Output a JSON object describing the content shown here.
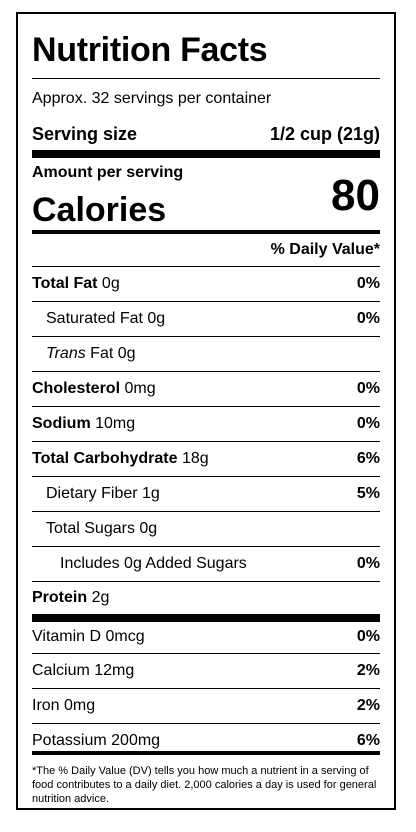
{
  "title": "Nutrition Facts",
  "servings_per_container": "Approx. 32 servings per container",
  "serving_size_label": "Serving size",
  "serving_size_value": "1/2 cup (21g)",
  "amount_per_serving": "Amount per serving",
  "calories_label": "Calories",
  "calories_value": "80",
  "dv_header": "% Daily Value*",
  "nutrients": {
    "total_fat": {
      "label": "Total Fat",
      "amount": " 0g",
      "dv": "0%"
    },
    "saturated_fat": {
      "label": "Saturated Fat 0g",
      "dv": "0%"
    },
    "trans_fat": {
      "label_italic": "Trans",
      "label_rest": " Fat 0g"
    },
    "cholesterol": {
      "label": "Cholesterol",
      "amount": " 0mg",
      "dv": "0%"
    },
    "sodium": {
      "label": "Sodium",
      "amount": " 10mg",
      "dv": "0%"
    },
    "total_carb": {
      "label": "Total Carbohydrate",
      "amount": " 18g",
      "dv": "6%"
    },
    "dietary_fiber": {
      "label": "Dietary Fiber 1g",
      "dv": "5%"
    },
    "total_sugars": {
      "label": "Total Sugars 0g"
    },
    "added_sugars": {
      "label": "Includes 0g Added Sugars",
      "dv": "0%"
    },
    "protein": {
      "label": "Protein",
      "amount": " 2g"
    }
  },
  "vitamins": {
    "vitamin_d": {
      "label": "Vitamin D 0mcg",
      "dv": "0%"
    },
    "calcium": {
      "label": "Calcium 12mg",
      "dv": "2%"
    },
    "iron": {
      "label": "Iron 0mg",
      "dv": "2%"
    },
    "potassium": {
      "label": "Potassium 200mg",
      "dv": "6%"
    }
  },
  "footnote": "*The % Daily Value (DV) tells you how much a nutrient in a serving of food contributes to a daily diet. 2,000 calories a day is used for general nutrition advice."
}
